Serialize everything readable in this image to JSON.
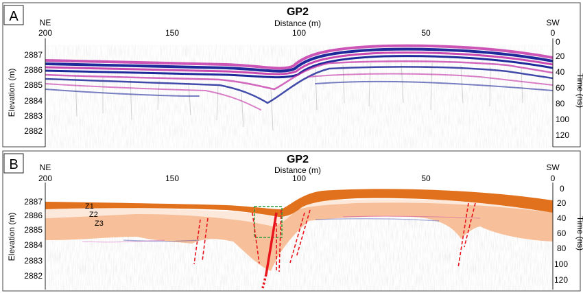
{
  "panels": [
    {
      "id": "A",
      "letter": "A",
      "title": "GP2",
      "xlabel": "Distance (m)",
      "left_direction": "NE",
      "right_direction": "SW",
      "ylabel_left": "Elevation (m)",
      "ylabel_right": "Time (ns)",
      "x_ticks": [
        "200",
        "150",
        "100",
        "50",
        "0"
      ],
      "elev_ticks": [
        "2887",
        "2886",
        "2885",
        "2884",
        "2883",
        "2882"
      ],
      "time_ticks": [
        "0",
        "20",
        "40",
        "60",
        "80",
        "100",
        "120"
      ]
    },
    {
      "id": "B",
      "letter": "B",
      "title": "GP2",
      "xlabel": "Distance (m)",
      "left_direction": "NE",
      "right_direction": "SW",
      "ylabel_left": "Elevation (m)",
      "ylabel_right": "Time (ns)",
      "x_ticks": [
        "200",
        "150",
        "100",
        "50",
        "0"
      ],
      "elev_ticks": [
        "2887",
        "2886",
        "2885",
        "2884",
        "2883",
        "2882"
      ],
      "time_ticks": [
        "0",
        "20",
        "40",
        "60",
        "80",
        "100",
        "120"
      ],
      "zone_labels": [
        "Z1",
        "Z2",
        "Z3"
      ]
    }
  ],
  "colors": {
    "layer_z1": "#e2711d",
    "layer_z2": "#fde9dc",
    "layer_z3": "#f7c09a",
    "fault_lines": "#e8131b",
    "highlight_box": "#2a9d3a",
    "reflector_blue": "#1e2a9a",
    "reflector_magenta": "#c12aa4"
  }
}
